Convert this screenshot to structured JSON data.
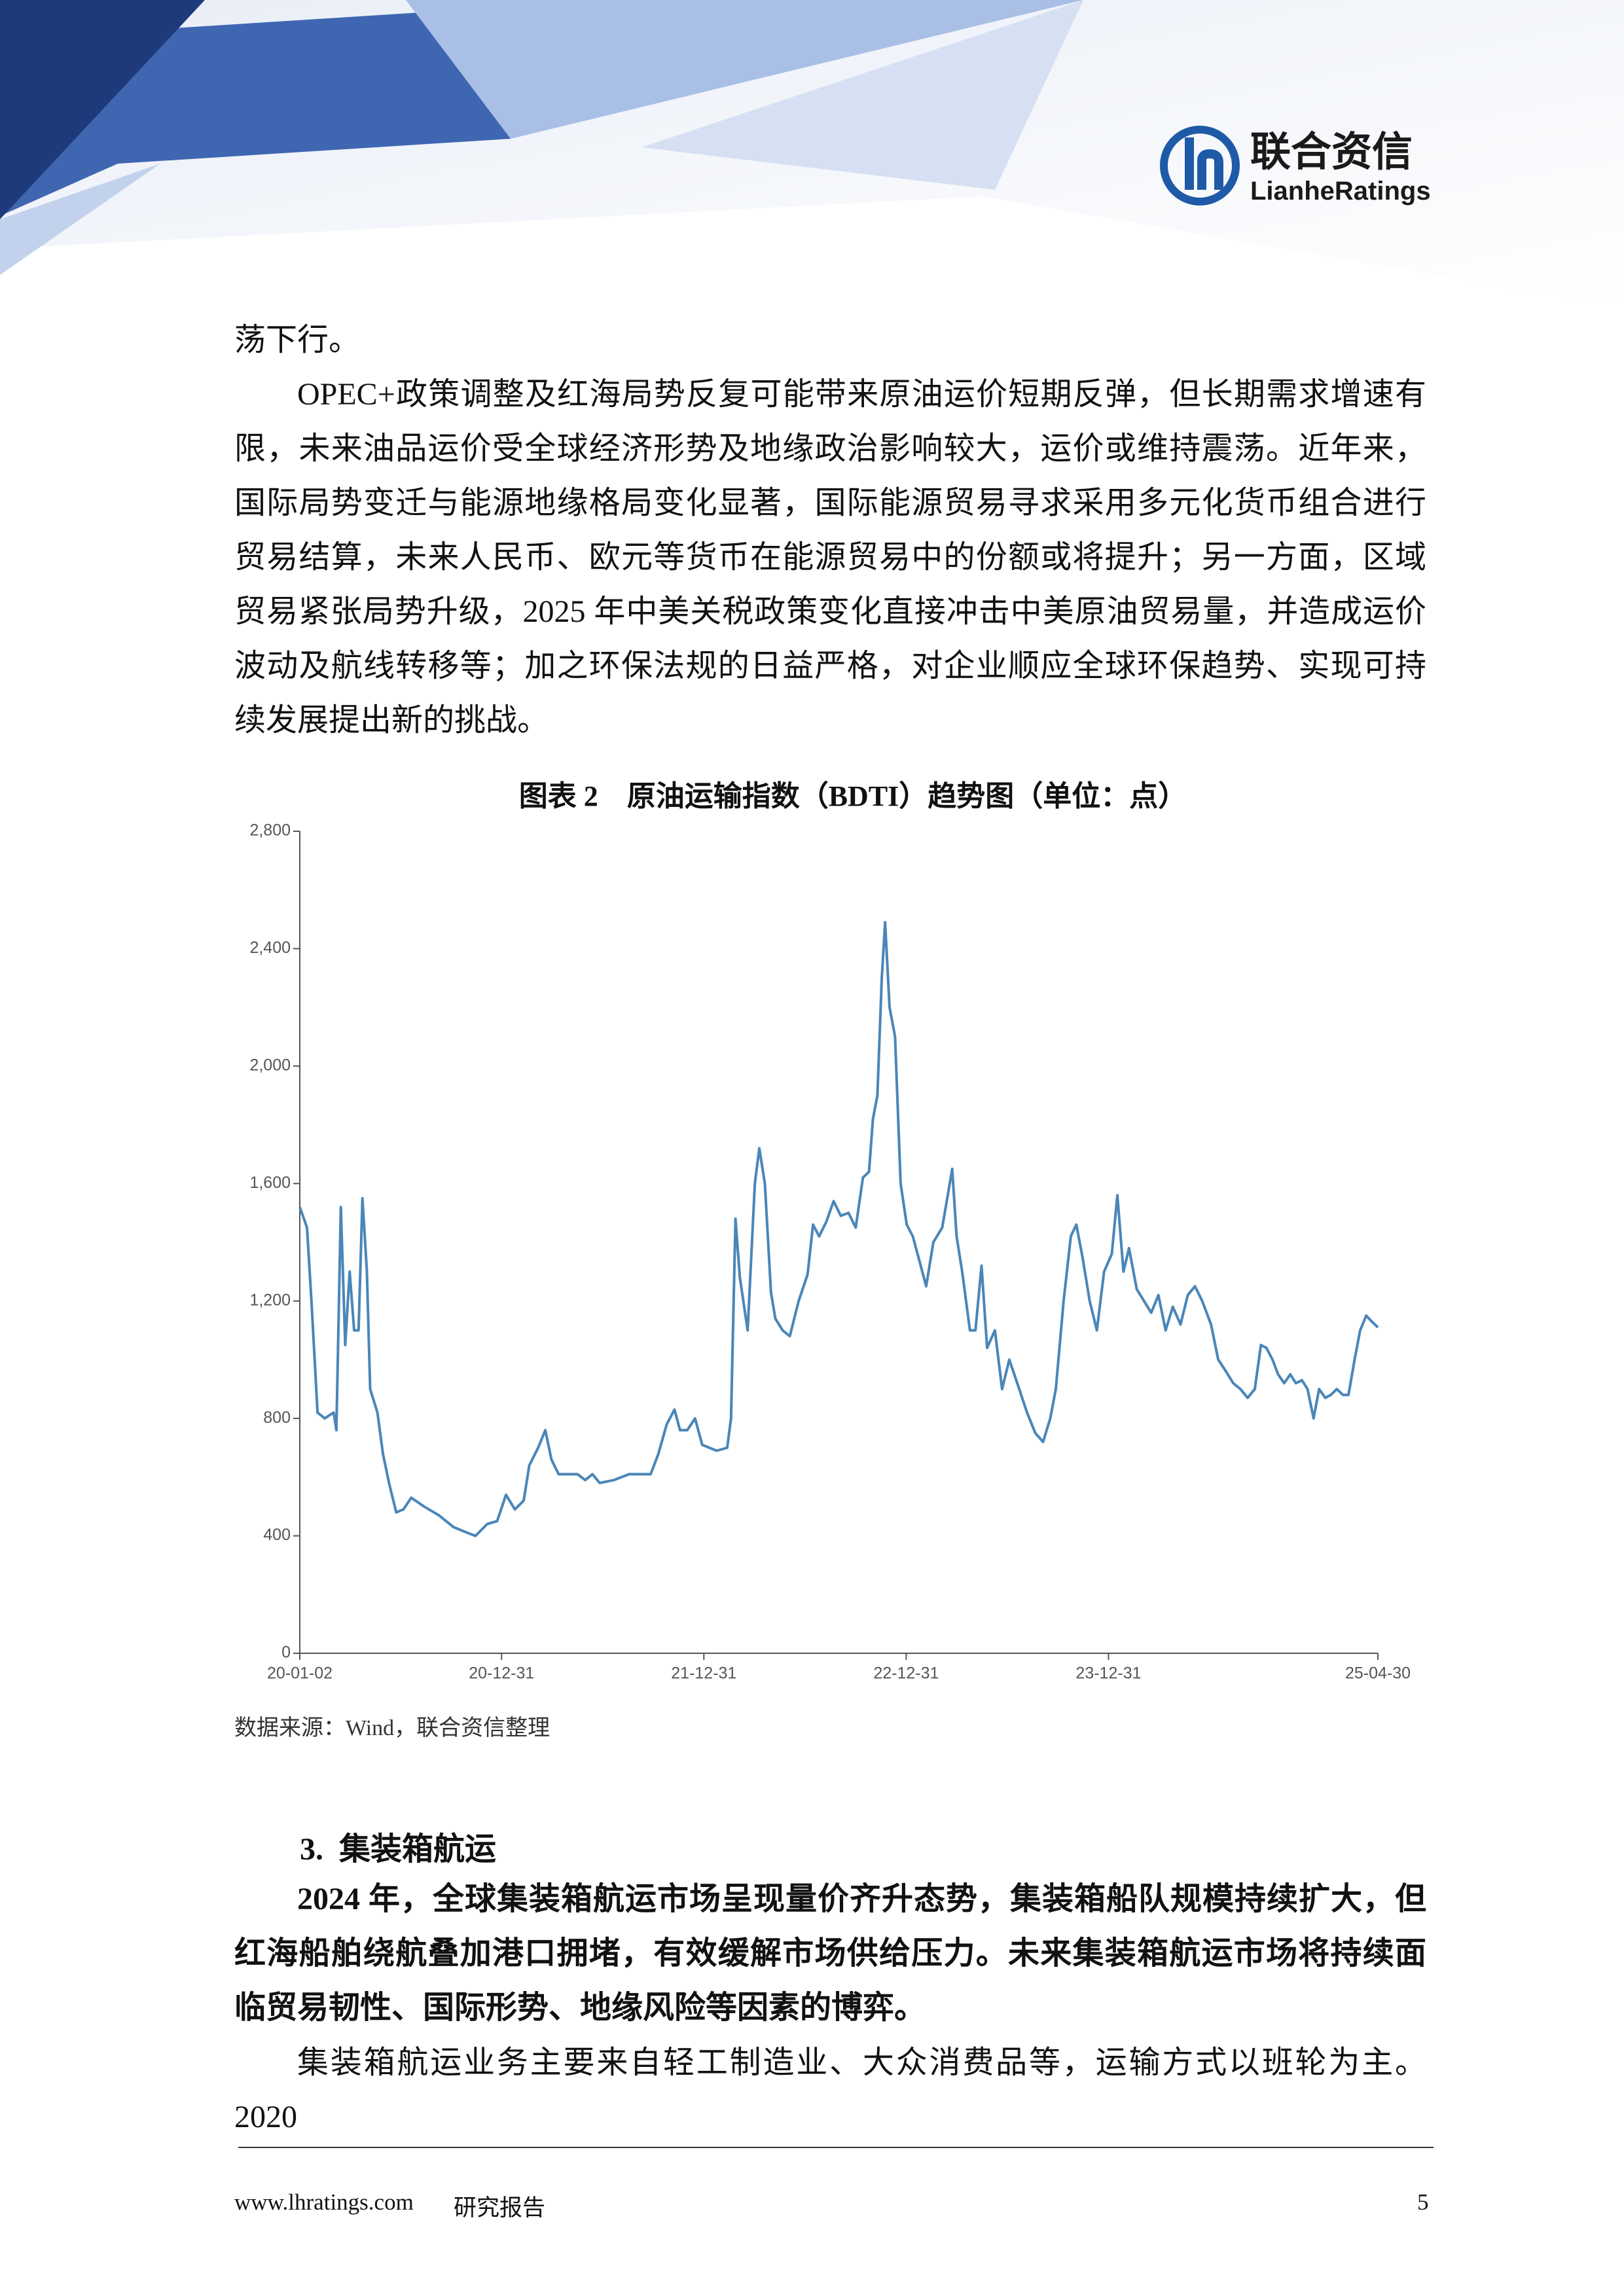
{
  "header": {
    "logo_cn": "联合资信",
    "logo_en": "LianheRatings"
  },
  "paragraphs": [
    "荡下行。",
    "OPEC+政策调整及红海局势反复可能带来原油运价短期反弹，但长期需求增速有限，未来油品运价受全球经济形势及地缘政治影响较大，运价或维持震荡。近年来，国际局势变迁与能源地缘格局变化显著，国际能源贸易寻求采用多元化货币组合进行贸易结算，未来人民币、欧元等货币在能源贸易中的份额或将提升；另一方面，区域贸易紧张局势升级，2025 年中美关税政策变化直接冲击中美原油贸易量，并造成运价波动及航线转移等；加之环保法规的日益严格，对企业顺应全球环保趋势、实现可持续发展提出新的挑战。"
  ],
  "chart_data": {
    "type": "line",
    "title": "图表 2　原油运输指数（BDTI）趋势图（单位：点）",
    "source": "数据来源：Wind，联合资信整理",
    "color": "#4a86b8",
    "x": [
      "20-01-02",
      "20-01-15",
      "20-01-23",
      "20-02-03",
      "20-02-16",
      "20-03-03",
      "20-03-08",
      "20-03-16",
      "20-03-24",
      "20-04-01",
      "20-04-09",
      "20-04-17",
      "20-04-24",
      "20-05-02",
      "20-05-08",
      "20-05-21",
      "20-05-31",
      "20-06-11",
      "20-06-24",
      "20-07-07",
      "20-07-21",
      "20-08-13",
      "20-09-09",
      "20-10-05",
      "20-10-31",
      "20-11-14",
      "20-12-05",
      "20-12-23",
      "21-01-08",
      "21-01-24",
      "21-02-09",
      "21-02-19",
      "21-03-07",
      "21-03-20",
      "21-03-31",
      "21-04-13",
      "21-05-17",
      "21-05-31",
      "21-06-13",
      "21-06-26",
      "21-07-22",
      "21-08-18",
      "21-09-26",
      "21-10-10",
      "21-10-25",
      "21-11-08",
      "21-11-18",
      "21-12-01",
      "21-12-15",
      "21-12-28",
      "22-01-23",
      "22-02-11",
      "22-02-18",
      "22-02-26",
      "22-03-06",
      "22-03-20",
      "22-04-02",
      "22-04-10",
      "22-04-20",
      "22-05-01",
      "22-05-09",
      "22-05-22",
      "22-06-04",
      "22-06-20",
      "22-07-06",
      "22-07-16",
      "22-07-27",
      "22-08-09",
      "22-08-22",
      "22-09-04",
      "22-09-18",
      "22-10-01",
      "22-10-14",
      "22-10-25",
      "22-11-01",
      "22-11-09",
      "22-11-17",
      "22-11-23",
      "22-12-01",
      "22-12-11",
      "22-12-21",
      "23-01-01",
      "23-01-12",
      "23-01-22",
      "23-02-05",
      "23-02-18",
      "23-03-06",
      "23-03-16",
      "23-03-24",
      "23-04-01",
      "23-04-11",
      "23-04-25",
      "23-05-05",
      "23-05-16",
      "23-05-26",
      "23-06-09",
      "23-06-22",
      "23-07-05",
      "23-07-23",
      "23-08-06",
      "23-08-21",
      "23-09-04",
      "23-09-17",
      "23-09-27",
      "23-10-11",
      "23-10-24",
      "23-11-03",
      "23-11-14",
      "23-11-27",
      "23-12-10",
      "23-12-23",
      "24-01-06",
      "24-01-16",
      "24-01-27",
      "24-02-06",
      "24-02-20",
      "24-03-04",
      "24-03-17",
      "24-03-30",
      "24-04-12",
      "24-04-25",
      "24-05-09",
      "24-05-22",
      "24-06-04",
      "24-06-17",
      "24-07-03",
      "24-07-16",
      "24-07-30",
      "24-08-12",
      "24-08-25",
      "24-09-07",
      "24-09-20",
      "24-10-01",
      "24-10-11",
      "24-10-22",
      "24-11-01",
      "24-11-12",
      "24-11-23",
      "24-12-03",
      "24-12-14",
      "24-12-24",
      "25-01-04",
      "25-01-14",
      "25-01-25",
      "25-02-04",
      "25-02-15",
      "25-02-26",
      "25-03-08",
      "25-03-19",
      "25-03-29",
      "25-04-09",
      "25-04-19",
      "25-04-30"
    ],
    "values": [
      1520,
      1450,
      1200,
      820,
      800,
      820,
      760,
      1520,
      1050,
      1300,
      1100,
      1100,
      1550,
      1300,
      900,
      820,
      680,
      580,
      480,
      490,
      530,
      500,
      470,
      430,
      410,
      400,
      440,
      450,
      540,
      490,
      520,
      640,
      700,
      760,
      660,
      610,
      610,
      590,
      610,
      580,
      590,
      610,
      610,
      680,
      780,
      830,
      760,
      760,
      800,
      710,
      690,
      700,
      800,
      1480,
      1280,
      1100,
      1600,
      1720,
      1600,
      1230,
      1140,
      1100,
      1080,
      1200,
      1290,
      1460,
      1420,
      1470,
      1540,
      1490,
      1500,
      1450,
      1620,
      1640,
      1820,
      1900,
      2300,
      2490,
      2200,
      2100,
      1600,
      1460,
      1420,
      1350,
      1250,
      1400,
      1450,
      1560,
      1650,
      1420,
      1300,
      1100,
      1100,
      1320,
      1040,
      1100,
      900,
      1000,
      900,
      820,
      750,
      720,
      800,
      900,
      1200,
      1420,
      1460,
      1350,
      1200,
      1100,
      1300,
      1360,
      1560,
      1300,
      1380,
      1240,
      1200,
      1160,
      1220,
      1100,
      1180,
      1120,
      1220,
      1250,
      1200,
      1120,
      1000,
      960,
      920,
      900,
      870,
      900,
      1050,
      1040,
      1000,
      950,
      920,
      950,
      920,
      930,
      900,
      800,
      900,
      870,
      880,
      900,
      880,
      880,
      1000,
      1100,
      1150,
      1130,
      1110
    ],
    "xlim": [
      "20-01-02",
      "25-04-30"
    ],
    "xticks": [
      "20-01-02",
      "20-12-31",
      "21-12-31",
      "22-12-31",
      "23-12-31",
      "25-04-30"
    ],
    "ylim": [
      0,
      2800
    ],
    "yticks": [
      0,
      400,
      800,
      {
        "value": 1200,
        "label": "1,200"
      },
      {
        "value": 1600,
        "label": "1,600"
      },
      {
        "value": 2000,
        "label": "2,000"
      },
      {
        "value": 2400,
        "label": "2,400"
      },
      {
        "value": 2800,
        "label": "2,800"
      }
    ],
    "grid": false
  },
  "section": {
    "heading": "3.  集装箱航运",
    "summary": "2024 年，全球集装箱航运市场呈现量价齐升态势，集装箱船队规模持续扩大，但红海船舶绕航叠加港口拥堵，有效缓解市场供给压力。未来集装箱航运市场将持续面临贸易韧性、国际形势、地缘风险等因素的博弈。",
    "body": "集装箱航运业务主要来自轻工制造业、大众消费品等，运输方式以班轮为主。2020"
  },
  "footer": {
    "site": "www.lhratings.com",
    "label": "研究报告",
    "page": "5"
  }
}
